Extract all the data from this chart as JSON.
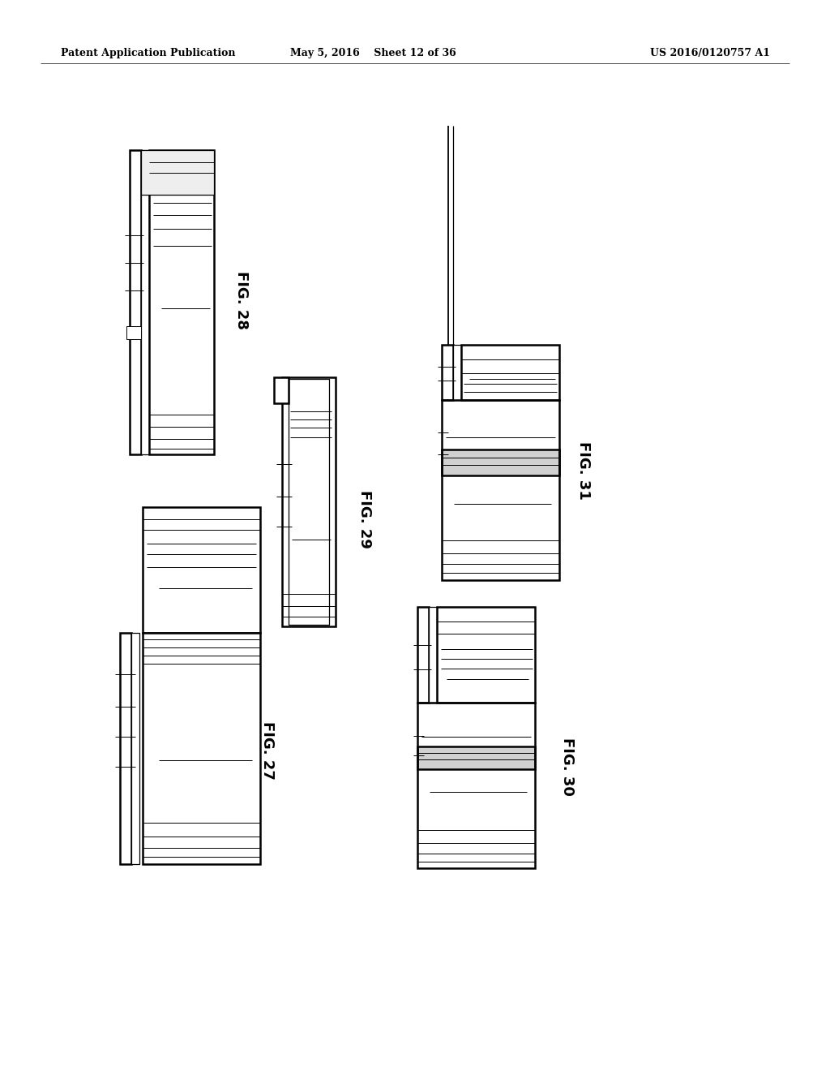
{
  "header_left": "Patent Application Publication",
  "header_mid": "May 5, 2016    Sheet 12 of 36",
  "header_right": "US 2016/0120757 A1",
  "bg_color": "#ffffff",
  "lw_outer": 1.8,
  "lw_inner": 0.9,
  "lw_thin": 0.7,
  "gray_dark": "#aaaaaa",
  "gray_mid": "#cccccc",
  "gray_light": "#e8e8e8"
}
